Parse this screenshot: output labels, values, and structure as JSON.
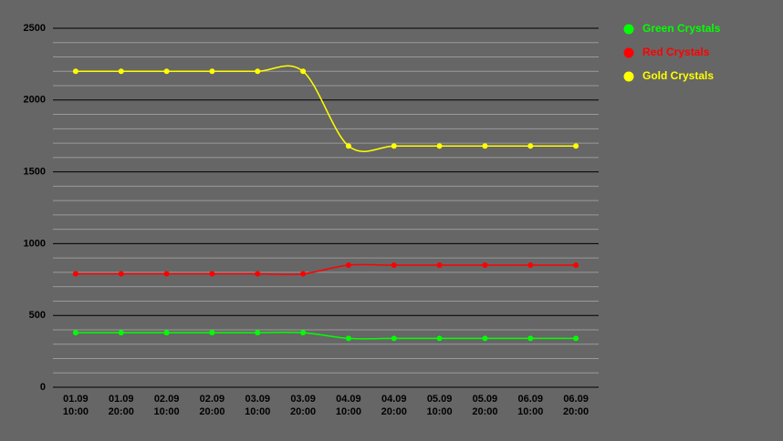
{
  "chart_data": {
    "type": "line",
    "categories": [
      "01.09\n10:00",
      "01.09\n20:00",
      "02.09\n10:00",
      "02.09\n20:00",
      "03.09\n10:00",
      "03.09\n20:00",
      "04.09\n10:00",
      "04.09\n20:00",
      "05.09\n10:00",
      "05.09\n20:00",
      "06.09\n10:00",
      "06.09\n20:00"
    ],
    "series": [
      {
        "name": "Green Crystals",
        "color": "#00ff00",
        "values": [
          380,
          380,
          380,
          380,
          380,
          380,
          340,
          340,
          340,
          340,
          340,
          340
        ]
      },
      {
        "name": "Red Crystals",
        "color": "#ff0000",
        "values": [
          790,
          790,
          790,
          790,
          790,
          790,
          850,
          850,
          850,
          850,
          850,
          850
        ]
      },
      {
        "name": "Gold Crystals",
        "color": "#ffff00",
        "values": [
          2200,
          2200,
          2200,
          2200,
          2200,
          2200,
          1680,
          1680,
          1680,
          1680,
          1680,
          1680
        ]
      }
    ],
    "ylim": [
      0,
      2500
    ],
    "yticks": [
      0,
      500,
      1000,
      1500,
      2000,
      2500
    ],
    "minor_yticks": [
      100,
      200,
      300,
      400,
      600,
      700,
      800,
      900,
      1100,
      1200,
      1300,
      1400,
      1600,
      1700,
      1800,
      1900,
      2100,
      2200,
      2300,
      2400
    ],
    "grid": true,
    "smooth": true,
    "legend": "right"
  }
}
